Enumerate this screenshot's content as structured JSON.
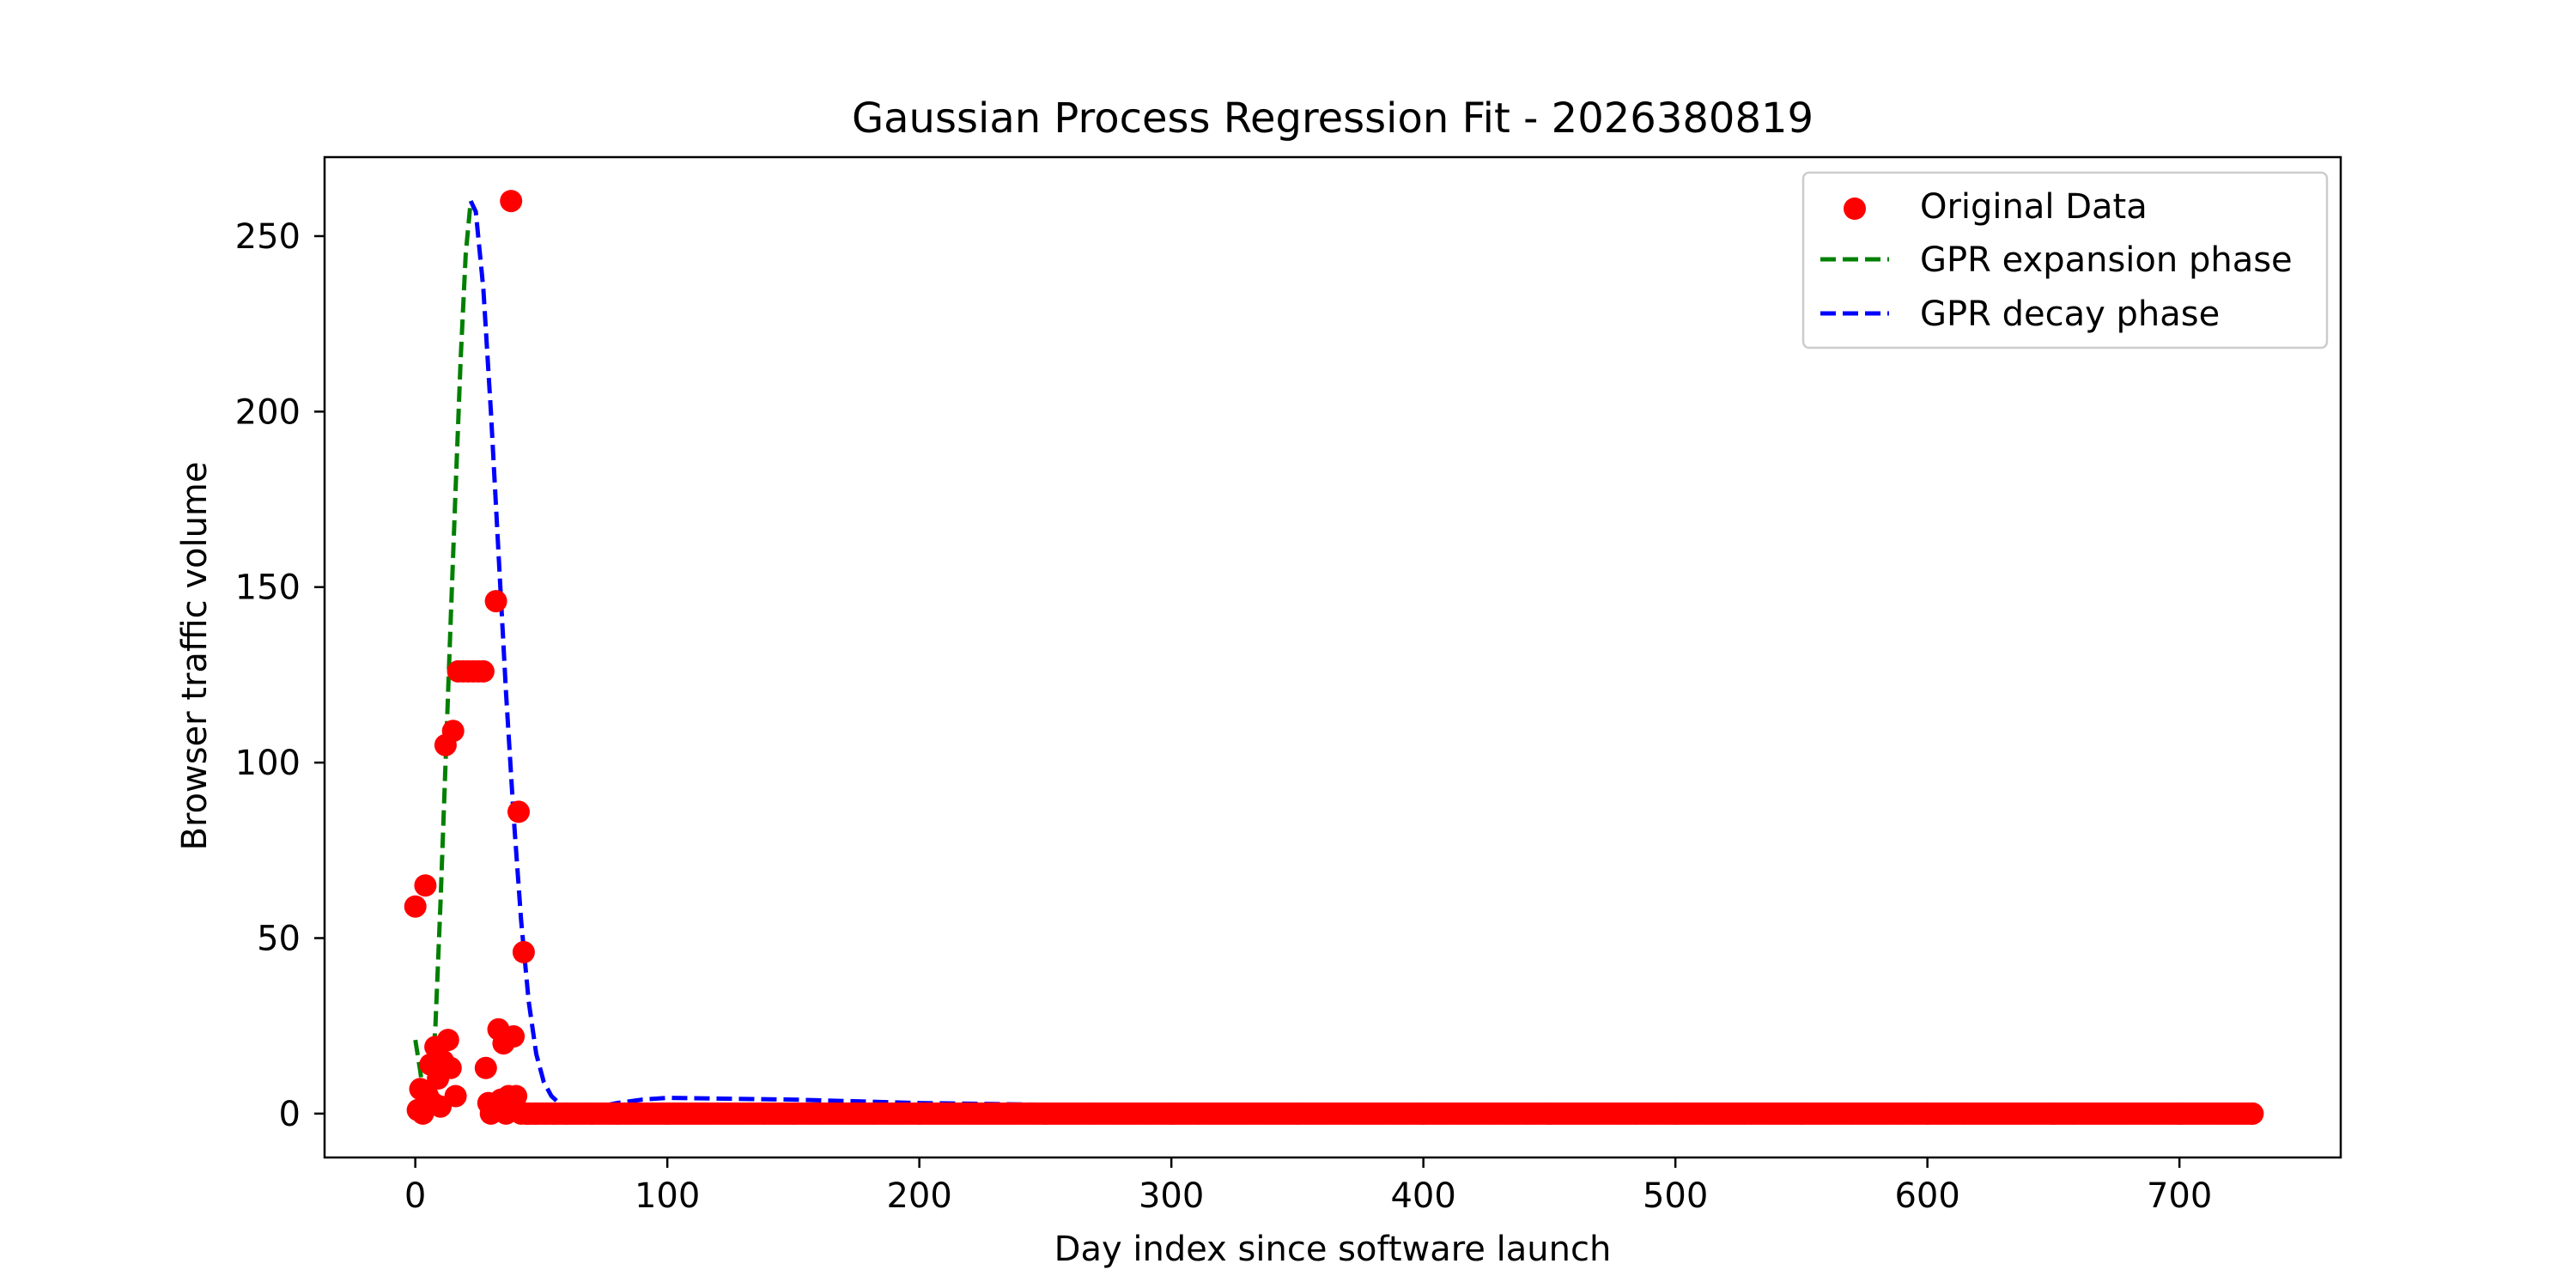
{
  "chart_data": {
    "type": "scatter",
    "title": "Gaussian Process Regression Fit - 2026380819",
    "xlabel": "Day index since software launch",
    "ylabel": "Browser traffic volume",
    "xlim": [
      -36,
      764
    ],
    "ylim": [
      -12.5,
      272.5
    ],
    "xticks": [
      0,
      100,
      200,
      300,
      400,
      500,
      600,
      700
    ],
    "yticks": [
      0,
      50,
      100,
      150,
      200,
      250
    ],
    "grid": false,
    "legend_position": "top-right",
    "colors": {
      "scatter": "#ff0000",
      "expansion": "#008000",
      "decay": "#0000ff"
    },
    "series": [
      {
        "name": "Original Data",
        "kind": "scatter",
        "points": [
          [
            0,
            59
          ],
          [
            1,
            1
          ],
          [
            2,
            7
          ],
          [
            3,
            0
          ],
          [
            4,
            65
          ],
          [
            5,
            5
          ],
          [
            6,
            14
          ],
          [
            7,
            3
          ],
          [
            8,
            19
          ],
          [
            9,
            10
          ],
          [
            10,
            2
          ],
          [
            11,
            15
          ],
          [
            12,
            105
          ],
          [
            13,
            21
          ],
          [
            14,
            13
          ],
          [
            15,
            109
          ],
          [
            16,
            5
          ],
          [
            17,
            126
          ],
          [
            19,
            126
          ],
          [
            21,
            126
          ],
          [
            23,
            126
          ],
          [
            25,
            126
          ],
          [
            27,
            126
          ],
          [
            28,
            13
          ],
          [
            29,
            3
          ],
          [
            30,
            0
          ],
          [
            31,
            2
          ],
          [
            32,
            146
          ],
          [
            33,
            24
          ],
          [
            34,
            4
          ],
          [
            35,
            20
          ],
          [
            36,
            0
          ],
          [
            37,
            5
          ],
          [
            38,
            260
          ],
          [
            39,
            22
          ],
          [
            40,
            5
          ],
          [
            41,
            86
          ],
          [
            42,
            0
          ],
          [
            43,
            46
          ],
          [
            44,
            0
          ],
          [
            45,
            0
          ],
          [
            48,
            0
          ],
          [
            55,
            0
          ],
          [
            60,
            0
          ],
          [
            70,
            0
          ],
          [
            80,
            0
          ],
          [
            100,
            0
          ],
          [
            150,
            0
          ],
          [
            200,
            0
          ],
          [
            250,
            0
          ],
          [
            300,
            0
          ],
          [
            350,
            0
          ],
          [
            400,
            0
          ],
          [
            450,
            0
          ],
          [
            500,
            0
          ],
          [
            550,
            0
          ],
          [
            600,
            0
          ],
          [
            650,
            0
          ],
          [
            700,
            0
          ],
          [
            729,
            0
          ]
        ],
        "fill_range": [
          44,
          729,
          0
        ]
      },
      {
        "name": "GPR expansion phase",
        "kind": "line",
        "style": "dashed",
        "points": [
          [
            0,
            21
          ],
          [
            2,
            12
          ],
          [
            4,
            1
          ],
          [
            6,
            3
          ],
          [
            8,
            25
          ],
          [
            10,
            60
          ],
          [
            12,
            100
          ],
          [
            14,
            140
          ],
          [
            16,
            178
          ],
          [
            18,
            215
          ],
          [
            20,
            245
          ],
          [
            22,
            260
          ]
        ]
      },
      {
        "name": "GPR decay phase",
        "kind": "line",
        "style": "dashed",
        "points": [
          [
            22,
            260
          ],
          [
            24,
            257
          ],
          [
            27,
            235
          ],
          [
            30,
            200
          ],
          [
            33,
            160
          ],
          [
            36,
            120
          ],
          [
            39,
            85
          ],
          [
            42,
            55
          ],
          [
            45,
            32
          ],
          [
            48,
            17
          ],
          [
            51,
            9
          ],
          [
            54,
            5
          ],
          [
            57,
            3
          ],
          [
            60,
            2
          ],
          [
            65,
            1
          ],
          [
            70,
            1.5
          ],
          [
            80,
            3
          ],
          [
            90,
            4
          ],
          [
            100,
            4.5
          ],
          [
            150,
            4
          ],
          [
            200,
            3
          ],
          [
            300,
            2
          ],
          [
            400,
            1.5
          ],
          [
            500,
            1
          ],
          [
            600,
            0.5
          ],
          [
            729,
            0
          ]
        ]
      }
    ]
  }
}
